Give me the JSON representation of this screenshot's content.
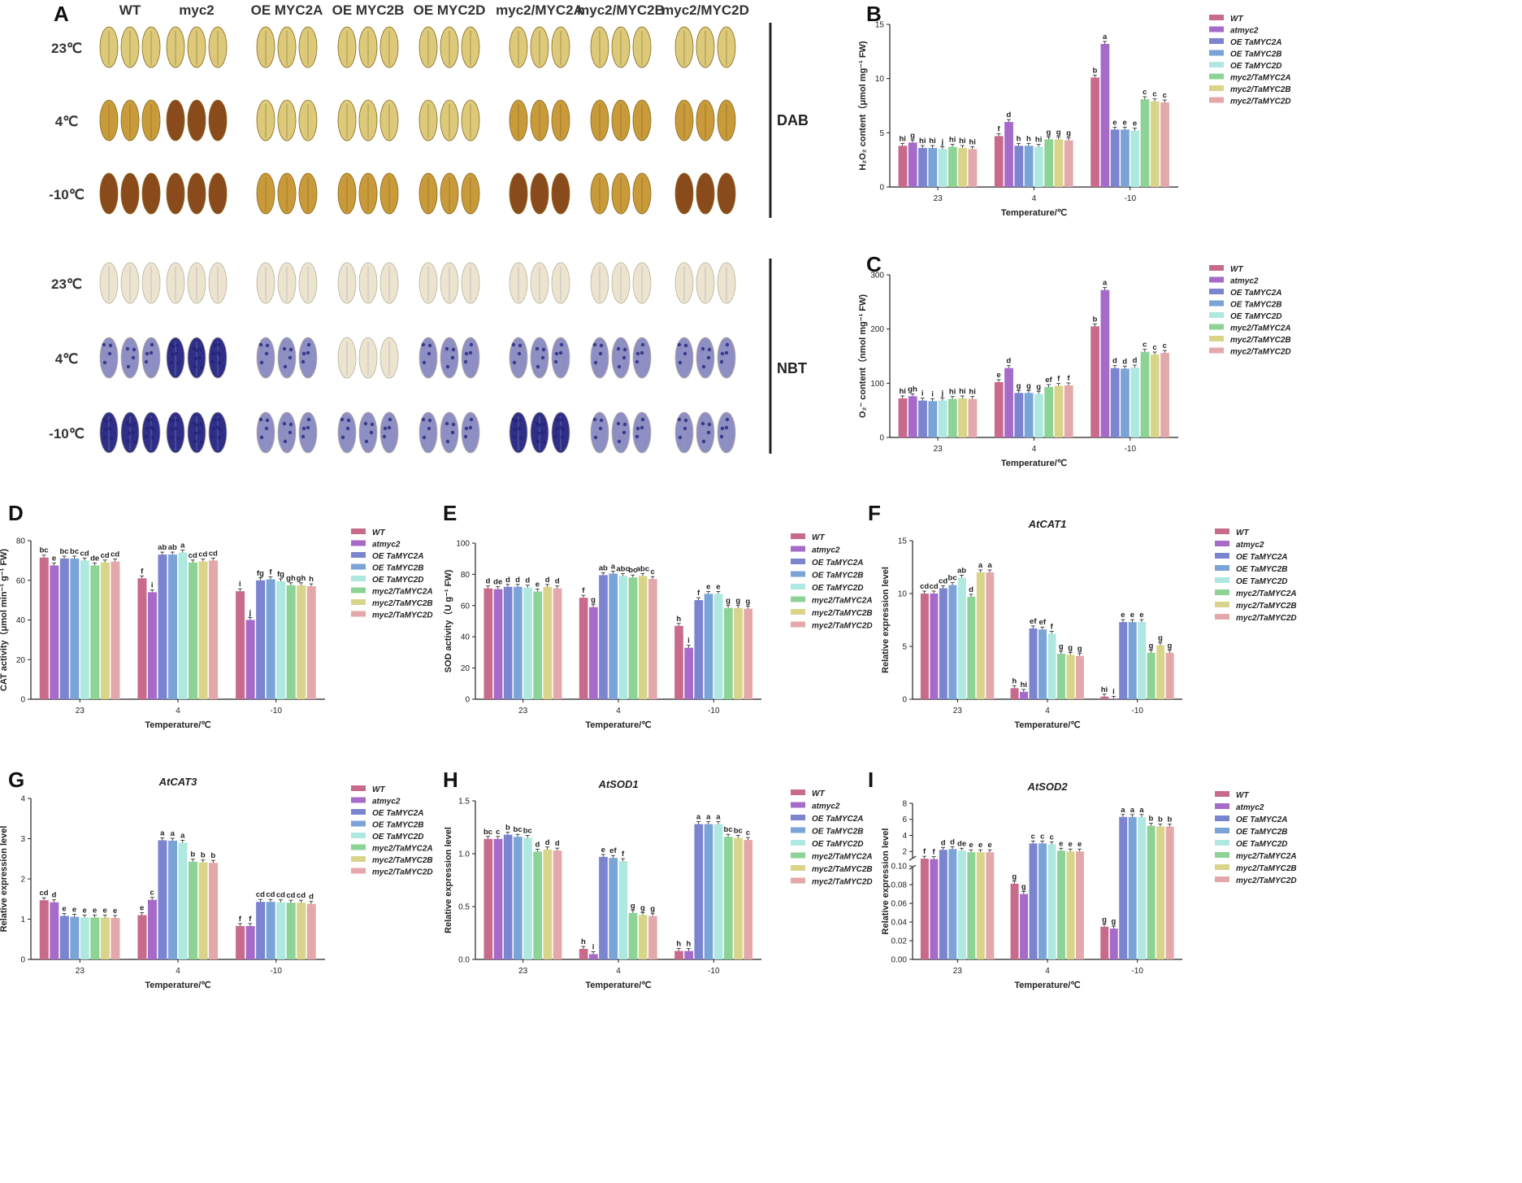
{
  "leaf_panel": {
    "label": "A",
    "columns": [
      "WT",
      "myc2",
      "OE MYC2A",
      "OE MYC2B",
      "OE MYC2D",
      "myc2/MYC2A",
      "myc2/MYC2B",
      "myc2/MYC2D"
    ],
    "rows": [
      "23℃",
      "4℃",
      "-10℃"
    ],
    "dab_label": "DAB",
    "nbt_label": "NBT",
    "colors": {
      "dab_light": "#dcc979",
      "dab_mid": "#c89a3a",
      "dab_dark": "#8a4a1c",
      "nbt_light": "#ece4cf",
      "nbt_mid": "#8d8fc4",
      "nbt_dark": "#2f2f88"
    },
    "dab_levels": [
      [
        1,
        1,
        1,
        1,
        1,
        1,
        1,
        1
      ],
      [
        2,
        3,
        1,
        1,
        1,
        2,
        2,
        2
      ],
      [
        3,
        3,
        2,
        2,
        2,
        3,
        2,
        3
      ]
    ],
    "nbt_levels": [
      [
        1,
        1,
        1,
        1,
        1,
        1,
        1,
        1
      ],
      [
        2,
        3,
        2,
        1,
        2,
        2,
        2,
        2
      ],
      [
        3,
        3,
        2,
        2,
        2,
        3,
        2,
        2
      ]
    ]
  },
  "legend_groups": [
    "WT",
    "atmyc2",
    "OE TaMYC2A",
    "OE TaMYC2B",
    "OE TaMYC2D",
    "myc2/TaMYC2A",
    "myc2/TaMYC2B",
    "myc2/TaMYC2D"
  ],
  "bar_colors": [
    "#c86a8b",
    "#a66bc9",
    "#7b84cf",
    "#7aa3d8",
    "#aee8e0",
    "#8cd395",
    "#d8d58a",
    "#e4a8aa"
  ],
  "chart_data": [
    {
      "id": "B",
      "type": "bar",
      "title": "",
      "xlabel": "Temperature/℃",
      "ylabel": "H₂O₂ content（μmol mg⁻¹ FW)",
      "categories": [
        "23",
        "4",
        "-10"
      ],
      "ylim": [
        0,
        15
      ],
      "yticks": [
        "0",
        "5",
        "10",
        "15"
      ],
      "series": [
        {
          "name": "WT",
          "values": [
            3.8,
            4.7,
            10.1
          ],
          "sig": [
            "hi",
            "f",
            "b"
          ]
        },
        {
          "name": "atmyc2",
          "values": [
            4.1,
            6.0,
            13.2
          ],
          "sig": [
            "g",
            "d",
            "a"
          ]
        },
        {
          "name": "OE TaMYC2A",
          "values": [
            3.6,
            3.8,
            5.3
          ],
          "sig": [
            "hi",
            "h",
            "e"
          ]
        },
        {
          "name": "OE TaMYC2B",
          "values": [
            3.6,
            3.8,
            5.3
          ],
          "sig": [
            "hi",
            "h",
            "e"
          ]
        },
        {
          "name": "OE TaMYC2D",
          "values": [
            3.5,
            3.7,
            5.2
          ],
          "sig": [
            "j",
            "hi",
            "e"
          ]
        },
        {
          "name": "myc2/TaMYC2A",
          "values": [
            3.7,
            4.4,
            8.1
          ],
          "sig": [
            "hi",
            "g",
            "c"
          ]
        },
        {
          "name": "myc2/TaMYC2B",
          "values": [
            3.6,
            4.4,
            7.9
          ],
          "sig": [
            "hi",
            "g",
            "c"
          ]
        },
        {
          "name": "myc2/TaMYC2D",
          "values": [
            3.5,
            4.3,
            7.8
          ],
          "sig": [
            "hi",
            "g",
            "c"
          ]
        }
      ]
    },
    {
      "id": "C",
      "type": "bar",
      "title": "",
      "xlabel": "Temperature/℃",
      "ylabel": "O₂⁻ content（nmol mg⁻¹ FW)",
      "categories": [
        "23",
        "4",
        "-10"
      ],
      "ylim": [
        0,
        300
      ],
      "yticks": [
        "0",
        "100",
        "200",
        "300"
      ],
      "series": [
        {
          "name": "WT",
          "values": [
            72,
            102,
            205
          ],
          "sig": [
            "hi",
            "e",
            "b"
          ]
        },
        {
          "name": "atmyc2",
          "values": [
            76,
            128,
            272
          ],
          "sig": [
            "gh",
            "d",
            "a"
          ]
        },
        {
          "name": "OE TaMYC2A",
          "values": [
            68,
            82,
            128
          ],
          "sig": [
            "i",
            "g",
            "d"
          ]
        },
        {
          "name": "OE TaMYC2B",
          "values": [
            67,
            82,
            127
          ],
          "sig": [
            "i",
            "g",
            "d"
          ]
        },
        {
          "name": "OE TaMYC2D",
          "values": [
            68,
            80,
            129
          ],
          "sig": [
            "j",
            "g",
            "d"
          ]
        },
        {
          "name": "myc2/TaMYC2A",
          "values": [
            71,
            93,
            158
          ],
          "sig": [
            "hi",
            "ef",
            "c"
          ]
        },
        {
          "name": "myc2/TaMYC2B",
          "values": [
            72,
            95,
            153
          ],
          "sig": [
            "hi",
            "f",
            "c"
          ]
        },
        {
          "name": "myc2/TaMYC2D",
          "values": [
            71,
            96,
            156
          ],
          "sig": [
            "hi",
            "f",
            "c"
          ]
        }
      ]
    },
    {
      "id": "D",
      "type": "bar",
      "title": "",
      "xlabel": "Temperature/℃",
      "ylabel": "CAT activity（μmol min⁻¹ g⁻¹ FW)",
      "categories": [
        "23",
        "4",
        "-10"
      ],
      "ylim": [
        0,
        80
      ],
      "yticks": [
        "0",
        "20",
        "40",
        "60",
        "80"
      ],
      "series": [
        {
          "name": "WT",
          "values": [
            71.5,
            61,
            54.5
          ],
          "sig": [
            "bc",
            "f",
            "i"
          ]
        },
        {
          "name": "atmyc2",
          "values": [
            67.5,
            54,
            40
          ],
          "sig": [
            "e",
            "i",
            "j"
          ]
        },
        {
          "name": "OE TaMYC2A",
          "values": [
            71,
            73,
            60
          ],
          "sig": [
            "bc",
            "ab",
            "fg"
          ]
        },
        {
          "name": "OE TaMYC2B",
          "values": [
            71,
            73,
            60.5
          ],
          "sig": [
            "bc",
            "ab",
            "f"
          ]
        },
        {
          "name": "OE TaMYC2D",
          "values": [
            70,
            74,
            59.5
          ],
          "sig": [
            "cd",
            "a",
            "fg"
          ]
        },
        {
          "name": "myc2/TaMYC2A",
          "values": [
            67.5,
            69,
            57.5
          ],
          "sig": [
            "de",
            "cd",
            "gh"
          ]
        },
        {
          "name": "myc2/TaMYC2B",
          "values": [
            69,
            69.5,
            57.5
          ],
          "sig": [
            "cd",
            "cd",
            "gh"
          ]
        },
        {
          "name": "myc2/TaMYC2D",
          "values": [
            69.5,
            70,
            57
          ],
          "sig": [
            "cd",
            "cd",
            "h"
          ]
        }
      ]
    },
    {
      "id": "E",
      "type": "bar",
      "title": "",
      "xlabel": "Temperature/℃",
      "ylabel": "SOD activity（U g⁻¹ FW)",
      "categories": [
        "23",
        "4",
        "-10"
      ],
      "ylim": [
        0,
        100
      ],
      "yticks": [
        "0",
        "20",
        "40",
        "60",
        "80",
        "100"
      ],
      "series": [
        {
          "name": "WT",
          "values": [
            71,
            65,
            47
          ],
          "sig": [
            "d",
            "f",
            "h"
          ]
        },
        {
          "name": "atmyc2",
          "values": [
            70.5,
            59,
            33
          ],
          "sig": [
            "de",
            "g",
            "i"
          ]
        },
        {
          "name": "OE TaMYC2A",
          "values": [
            72,
            79.5,
            63.5
          ],
          "sig": [
            "d",
            "ab",
            "f"
          ]
        },
        {
          "name": "OE TaMYC2B",
          "values": [
            72,
            80.5,
            67.5
          ],
          "sig": [
            "d",
            "a",
            "e"
          ]
        },
        {
          "name": "OE TaMYC2D",
          "values": [
            71.5,
            79,
            67.5
          ],
          "sig": [
            "d",
            "abc",
            "e"
          ]
        },
        {
          "name": "myc2/TaMYC2A",
          "values": [
            69,
            78,
            58.5
          ],
          "sig": [
            "e",
            "bc",
            "g"
          ]
        },
        {
          "name": "myc2/TaMYC2B",
          "values": [
            72,
            79,
            58.5
          ],
          "sig": [
            "d",
            "abc",
            "g"
          ]
        },
        {
          "name": "myc2/TaMYC2D",
          "values": [
            71,
            77,
            58
          ],
          "sig": [
            "d",
            "c",
            "g"
          ]
        }
      ]
    },
    {
      "id": "F",
      "type": "bar",
      "title": "AtCAT1",
      "xlabel": "Temperature/℃",
      "ylabel": "Relative expression level",
      "categories": [
        "23",
        "4",
        "-10"
      ],
      "ylim": [
        0,
        15
      ],
      "yticks": [
        "0",
        "5",
        "10",
        "15"
      ],
      "series": [
        {
          "name": "WT",
          "values": [
            10,
            1.05,
            0.25
          ],
          "sig": [
            "cd",
            "h",
            "hi"
          ]
        },
        {
          "name": "atmyc2",
          "values": [
            10,
            0.7,
            0.05
          ],
          "sig": [
            "cd",
            "hi",
            "i"
          ]
        },
        {
          "name": "OE TaMYC2A",
          "values": [
            10.5,
            6.7,
            7.3
          ],
          "sig": [
            "cd",
            "ef",
            "e"
          ]
        },
        {
          "name": "OE TaMYC2B",
          "values": [
            10.8,
            6.6,
            7.3
          ],
          "sig": [
            "bc",
            "ef",
            "e"
          ]
        },
        {
          "name": "OE TaMYC2D",
          "values": [
            11.5,
            6.2,
            7.3
          ],
          "sig": [
            "ab",
            "f",
            "e"
          ]
        },
        {
          "name": "myc2/TaMYC2A",
          "values": [
            9.7,
            4.3,
            4.4
          ],
          "sig": [
            "d",
            "g",
            "g"
          ]
        },
        {
          "name": "myc2/TaMYC2B",
          "values": [
            12,
            4.2,
            5.1
          ],
          "sig": [
            "a",
            "g",
            "g"
          ]
        },
        {
          "name": "myc2/TaMYC2D",
          "values": [
            12,
            4.1,
            4.4
          ],
          "sig": [
            "a",
            "g",
            "g"
          ]
        }
      ]
    },
    {
      "id": "G",
      "type": "bar",
      "title": "AtCAT3",
      "xlabel": "Temperature/℃",
      "ylabel": "Relative expression level",
      "categories": [
        "23",
        "4",
        "-10"
      ],
      "ylim": [
        0,
        4
      ],
      "yticks": [
        "0",
        "1",
        "2",
        "3",
        "4"
      ],
      "series": [
        {
          "name": "WT",
          "values": [
            1.47,
            1.1,
            0.83
          ],
          "sig": [
            "cd",
            "e",
            "f"
          ]
        },
        {
          "name": "atmyc2",
          "values": [
            1.42,
            1.48,
            0.83
          ],
          "sig": [
            "d",
            "c",
            "f"
          ]
        },
        {
          "name": "OE TaMYC2A",
          "values": [
            1.08,
            2.96,
            1.43
          ],
          "sig": [
            "e",
            "a",
            "cd"
          ]
        },
        {
          "name": "OE TaMYC2B",
          "values": [
            1.06,
            2.95,
            1.43
          ],
          "sig": [
            "e",
            "a",
            "cd"
          ]
        },
        {
          "name": "OE TaMYC2D",
          "values": [
            1.04,
            2.9,
            1.42
          ],
          "sig": [
            "e",
            "a",
            "cd"
          ]
        },
        {
          "name": "myc2/TaMYC2A",
          "values": [
            1.04,
            2.43,
            1.41
          ],
          "sig": [
            "e",
            "b",
            "cd"
          ]
        },
        {
          "name": "myc2/TaMYC2B",
          "values": [
            1.04,
            2.41,
            1.41
          ],
          "sig": [
            "e",
            "b",
            "cd"
          ]
        },
        {
          "name": "myc2/TaMYC2D",
          "values": [
            1.03,
            2.4,
            1.38
          ],
          "sig": [
            "e",
            "b",
            "d"
          ]
        }
      ]
    },
    {
      "id": "H",
      "type": "bar",
      "title": "AtSOD1",
      "xlabel": "Temperature/℃",
      "ylabel": "Relative expression level",
      "categories": [
        "23",
        "4",
        "-10"
      ],
      "ylim": [
        0,
        1.5
      ],
      "yticks": [
        "0.0",
        "0.5",
        "1.0",
        "1.5"
      ],
      "series": [
        {
          "name": "WT",
          "values": [
            1.14,
            0.1,
            0.08
          ],
          "sig": [
            "bc",
            "h",
            "h"
          ]
        },
        {
          "name": "atmyc2",
          "values": [
            1.14,
            0.05,
            0.08
          ],
          "sig": [
            "c",
            "i",
            "h"
          ]
        },
        {
          "name": "OE TaMYC2A",
          "values": [
            1.18,
            0.97,
            1.28
          ],
          "sig": [
            "b",
            "e",
            "a"
          ]
        },
        {
          "name": "OE TaMYC2B",
          "values": [
            1.16,
            0.96,
            1.28
          ],
          "sig": [
            "bc",
            "ef",
            "a"
          ]
        },
        {
          "name": "OE TaMYC2D",
          "values": [
            1.15,
            0.93,
            1.28
          ],
          "sig": [
            "bc",
            "f",
            "a"
          ]
        },
        {
          "name": "myc2/TaMYC2A",
          "values": [
            1.02,
            0.44,
            1.16
          ],
          "sig": [
            "d",
            "g",
            "bc"
          ]
        },
        {
          "name": "myc2/TaMYC2B",
          "values": [
            1.04,
            0.42,
            1.15
          ],
          "sig": [
            "d",
            "g",
            "bc"
          ]
        },
        {
          "name": "myc2/TaMYC2D",
          "values": [
            1.03,
            0.41,
            1.13
          ],
          "sig": [
            "d",
            "g",
            "c"
          ]
        }
      ]
    },
    {
      "id": "I",
      "type": "bar",
      "title": "AtSOD2",
      "xlabel": "Temperature/℃",
      "ylabel": "Relative expression level",
      "categories": [
        "23",
        "4",
        "-10"
      ],
      "broken_axis": true,
      "lower_ylim": [
        0,
        0.1
      ],
      "upper_ylim": [
        0,
        8
      ],
      "yticks_lower": [
        "0.00",
        "0.02",
        "0.04",
        "0.06",
        "0.08",
        "0.10"
      ],
      "yticks_upper": [
        "2",
        "4",
        "6",
        "8"
      ],
      "series": [
        {
          "name": "WT",
          "values": [
            1.1,
            0.081,
            0.035
          ],
          "sig": [
            "f",
            "g",
            "g"
          ]
        },
        {
          "name": "atmyc2",
          "values": [
            1.05,
            0.07,
            0.033
          ],
          "sig": [
            "f",
            "g",
            "g"
          ]
        },
        {
          "name": "OE TaMYC2A",
          "values": [
            2.2,
            3.0,
            6.3
          ],
          "sig": [
            "d",
            "c",
            "a"
          ]
        },
        {
          "name": "OE TaMYC2B",
          "values": [
            2.3,
            3.0,
            6.3
          ],
          "sig": [
            "d",
            "c",
            "a"
          ]
        },
        {
          "name": "OE TaMYC2D",
          "values": [
            2.1,
            2.9,
            6.3
          ],
          "sig": [
            "de",
            "c",
            "a"
          ]
        },
        {
          "name": "myc2/TaMYC2A",
          "values": [
            1.9,
            2.1,
            5.2
          ],
          "sig": [
            "e",
            "e",
            "b"
          ]
        },
        {
          "name": "myc2/TaMYC2B",
          "values": [
            1.9,
            2.0,
            5.1
          ],
          "sig": [
            "e",
            "e",
            "b"
          ]
        },
        {
          "name": "myc2/TaMYC2D",
          "values": [
            1.9,
            2.0,
            5.1
          ],
          "sig": [
            "e",
            "e",
            "b"
          ]
        }
      ]
    }
  ]
}
